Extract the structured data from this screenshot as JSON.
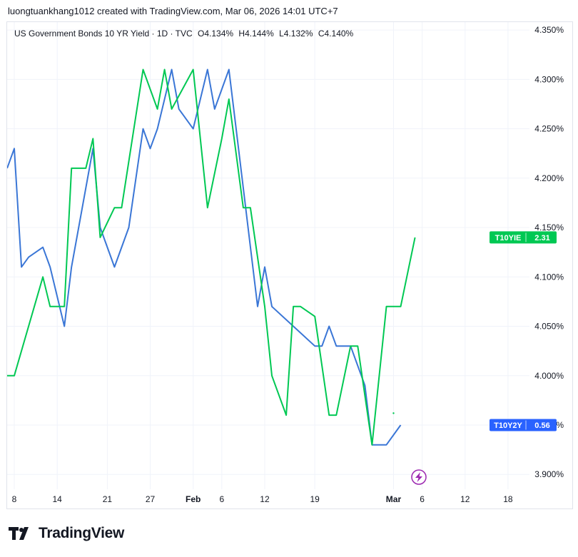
{
  "header": {
    "text": "luongtuankhang1012 created with TradingView.com, Mar 06, 2026 14:01 UTC+7"
  },
  "legend": {
    "symbol": "US Government Bonds 10 YR Yield · 1D · TVC",
    "open": "O4.134%",
    "high": "H4.144%",
    "low": "L4.132%",
    "close": "C4.140%"
  },
  "brand": {
    "name": "TradingView",
    "logo_icon": "tradingview-logo-icon"
  },
  "colors": {
    "green": "#00c853",
    "blue": "#2962ff",
    "line_blue": "#3a76d6",
    "grid": "#f0f3fa",
    "axis_text": "#131722",
    "lightning": "#9c27b0"
  },
  "chart_data": {
    "type": "line",
    "y_axis": {
      "unit": "%",
      "ylim": [
        3.885,
        4.358
      ],
      "ticks": [
        "4.350%",
        "4.300%",
        "4.250%",
        "4.200%",
        "4.150%",
        "4.100%",
        "4.050%",
        "4.000%",
        "3.950%",
        "3.900%"
      ],
      "tick_values": [
        4.35,
        4.3,
        4.25,
        4.2,
        4.15,
        4.1,
        4.05,
        4.0,
        3.95,
        3.9
      ]
    },
    "x_axis": {
      "xlim": [
        "2026-01-07",
        "2026-03-21"
      ],
      "tick_labels": [
        "8",
        "14",
        "21",
        "27",
        "Feb",
        "6",
        "12",
        "19",
        "Mar",
        "6",
        "12",
        "18"
      ],
      "tick_dates": [
        "2026-01-08",
        "2026-01-14",
        "2026-01-21",
        "2026-01-27",
        "2026-02-02",
        "2026-02-06",
        "2026-02-12",
        "2026-02-19",
        "2026-03-02",
        "2026-03-06",
        "2026-03-12",
        "2026-03-18"
      ],
      "bold_labels": [
        "Feb",
        "Mar"
      ]
    },
    "grid": true,
    "series": [
      {
        "name": "T10Y2Y",
        "color": "#3a76d6",
        "badge_color": "#2962ff",
        "last_value": "0.56",
        "points": [
          [
            "2026-01-07",
            4.21
          ],
          [
            "2026-01-08",
            4.23
          ],
          [
            "2026-01-09",
            4.11
          ],
          [
            "2026-01-10",
            4.12
          ],
          [
            "2026-01-12",
            4.13
          ],
          [
            "2026-01-13",
            4.11
          ],
          [
            "2026-01-15",
            4.05
          ],
          [
            "2026-01-16",
            4.11
          ],
          [
            "2026-01-19",
            4.23
          ],
          [
            "2026-01-20",
            4.15
          ],
          [
            "2026-01-22",
            4.11
          ],
          [
            "2026-01-24",
            4.15
          ],
          [
            "2026-01-26",
            4.25
          ],
          [
            "2026-01-27",
            4.23
          ],
          [
            "2026-01-28",
            4.25
          ],
          [
            "2026-01-30",
            4.31
          ],
          [
            "2026-01-31",
            4.27
          ],
          [
            "2026-02-02",
            4.25
          ],
          [
            "2026-02-04",
            4.31
          ],
          [
            "2026-02-05",
            4.27
          ],
          [
            "2026-02-07",
            4.31
          ],
          [
            "2026-02-08",
            4.25
          ],
          [
            "2026-02-11",
            4.07
          ],
          [
            "2026-02-12",
            4.11
          ],
          [
            "2026-02-13",
            4.07
          ],
          [
            "2026-02-16",
            4.05
          ],
          [
            "2026-02-19",
            4.03
          ],
          [
            "2026-02-20",
            4.03
          ],
          [
            "2026-02-21",
            4.05
          ],
          [
            "2026-02-22",
            4.03
          ],
          [
            "2026-02-24",
            4.03
          ],
          [
            "2026-02-26",
            3.99
          ],
          [
            "2026-02-27",
            3.93
          ],
          [
            "2026-02-28",
            3.93
          ],
          [
            "2026-03-01",
            3.93
          ],
          [
            "2026-03-03",
            3.95
          ]
        ]
      },
      {
        "name": "T10YIE",
        "color": "#00c853",
        "badge_color": "#00c853",
        "last_value": "2.31",
        "points": [
          [
            "2026-01-07",
            4.0
          ],
          [
            "2026-01-08",
            4.0
          ],
          [
            "2026-01-12",
            4.1
          ],
          [
            "2026-01-13",
            4.07
          ],
          [
            "2026-01-15",
            4.07
          ],
          [
            "2026-01-16",
            4.21
          ],
          [
            "2026-01-18",
            4.21
          ],
          [
            "2026-01-19",
            4.24
          ],
          [
            "2026-01-20",
            4.14
          ],
          [
            "2026-01-22",
            4.17
          ],
          [
            "2026-01-23",
            4.17
          ],
          [
            "2026-01-26",
            4.31
          ],
          [
            "2026-01-28",
            4.27
          ],
          [
            "2026-01-29",
            4.31
          ],
          [
            "2026-01-30",
            4.27
          ],
          [
            "2026-02-02",
            4.31
          ],
          [
            "2026-02-04",
            4.17
          ],
          [
            "2026-02-06",
            4.24
          ],
          [
            "2026-02-07",
            4.28
          ],
          [
            "2026-02-09",
            4.17
          ],
          [
            "2026-02-10",
            4.17
          ],
          [
            "2026-02-12",
            4.07
          ],
          [
            "2026-02-13",
            4.0
          ],
          [
            "2026-02-15",
            3.96
          ],
          [
            "2026-02-16",
            4.07
          ],
          [
            "2026-02-17",
            4.07
          ],
          [
            "2026-02-19",
            4.06
          ],
          [
            "2026-02-21",
            3.96
          ],
          [
            "2026-02-22",
            3.96
          ],
          [
            "2026-02-24",
            4.03
          ],
          [
            "2026-02-25",
            4.03
          ],
          [
            "2026-02-27",
            3.93
          ],
          [
            "2026-03-01",
            4.07
          ],
          [
            "2026-03-02",
            4.07
          ],
          [
            "2026-03-03",
            4.07
          ],
          [
            "2026-03-05",
            4.14
          ]
        ]
      }
    ]
  }
}
